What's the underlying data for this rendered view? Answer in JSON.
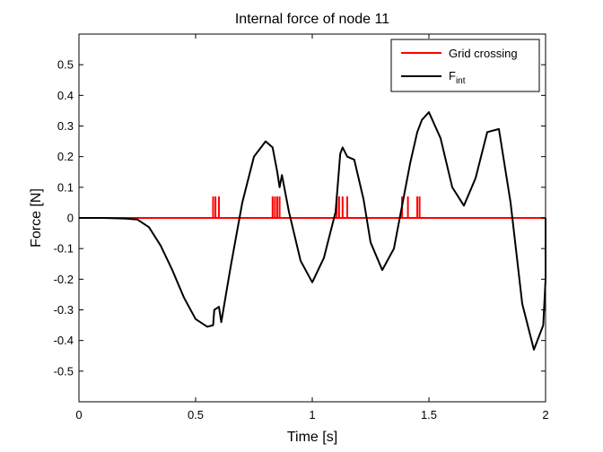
{
  "chart_data": {
    "type": "line",
    "title": "Internal force of node 11",
    "xlabel": "Time [s]",
    "ylabel": "Force [N]",
    "xlim": [
      0,
      2
    ],
    "ylim": [
      -0.6,
      0.6
    ],
    "x_ticks": [
      0,
      0.5,
      1,
      1.5,
      2
    ],
    "x_tick_labels": [
      "0",
      "0.5",
      "1",
      "1.5",
      "2"
    ],
    "y_ticks": [
      -0.5,
      -0.4,
      -0.3,
      -0.2,
      -0.1,
      0,
      0.1,
      0.2,
      0.3,
      0.4,
      0.5
    ],
    "y_tick_labels": [
      "-0.5",
      "-0.4",
      "-0.3",
      "-0.2",
      "-0.1",
      "0",
      "0.1",
      "0.2",
      "0.3",
      "0.4",
      "0.5"
    ],
    "grid": false,
    "legend_position": "top-right",
    "series": [
      {
        "name": "Grid crossing",
        "color": "#ff0000",
        "baseline": 0,
        "pulse_height": 0.07,
        "pulse_times": [
          0.575,
          0.585,
          0.6,
          0.83,
          0.84,
          0.85,
          0.86,
          1.105,
          1.115,
          1.13,
          1.15,
          1.385,
          1.41,
          1.45,
          1.46
        ]
      },
      {
        "name": "F",
        "name_subscript": "int",
        "color": "#000000",
        "x": [
          0,
          0.1,
          0.2,
          0.25,
          0.3,
          0.35,
          0.4,
          0.45,
          0.5,
          0.55,
          0.575,
          0.58,
          0.6,
          0.61,
          0.65,
          0.7,
          0.75,
          0.8,
          0.83,
          0.85,
          0.86,
          0.87,
          0.9,
          0.95,
          1.0,
          1.05,
          1.1,
          1.12,
          1.13,
          1.15,
          1.18,
          1.22,
          1.25,
          1.3,
          1.35,
          1.4,
          1.42,
          1.45,
          1.47,
          1.5,
          1.55,
          1.6,
          1.65,
          1.7,
          1.75,
          1.8,
          1.85,
          1.9,
          1.95,
          1.99,
          2.0,
          2.0
        ],
        "y": [
          0,
          0,
          -0.002,
          -0.005,
          -0.03,
          -0.09,
          -0.17,
          -0.26,
          -0.33,
          -0.355,
          -0.35,
          -0.3,
          -0.29,
          -0.34,
          -0.16,
          0.05,
          0.2,
          0.25,
          0.23,
          0.15,
          0.1,
          0.14,
          0.02,
          -0.14,
          -0.21,
          -0.13,
          0.02,
          0.21,
          0.23,
          0.2,
          0.19,
          0.06,
          -0.08,
          -0.17,
          -0.1,
          0.1,
          0.18,
          0.28,
          0.32,
          0.345,
          0.26,
          0.1,
          0.04,
          0.13,
          0.28,
          0.29,
          0.05,
          -0.28,
          -0.43,
          -0.35,
          -0.2,
          0
        ]
      }
    ]
  }
}
